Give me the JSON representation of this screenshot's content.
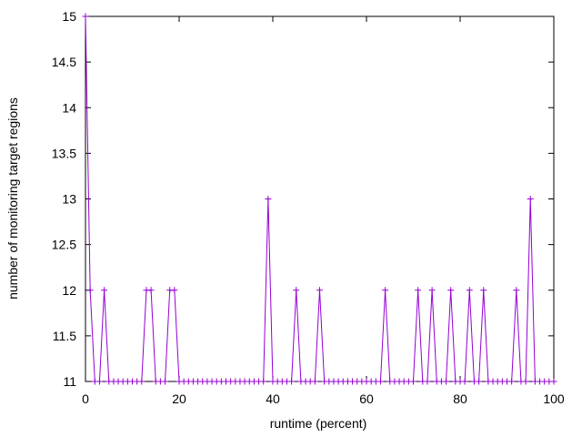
{
  "chart_data": {
    "type": "line",
    "title": "",
    "xlabel": "runtime (percent)",
    "ylabel": "number of monitoring target regions",
    "xlim": [
      0,
      100
    ],
    "ylim": [
      11,
      15
    ],
    "xticks": [
      "0",
      "20",
      "40",
      "60",
      "80",
      "100"
    ],
    "yticks": [
      "11",
      "11.5",
      "12",
      "12.5",
      "13",
      "13.5",
      "14",
      "14.5",
      "15"
    ],
    "grid": false,
    "legend": "none",
    "colors": {
      "series": "#9400d3",
      "axis": "#000000"
    },
    "series": [
      {
        "marker": "plus",
        "x": [
          0,
          1,
          2,
          3,
          4,
          5,
          6,
          7,
          8,
          9,
          10,
          11,
          12,
          13,
          14,
          15,
          16,
          17,
          18,
          19,
          20,
          21,
          22,
          23,
          24,
          25,
          26,
          27,
          28,
          29,
          30,
          31,
          32,
          33,
          34,
          35,
          36,
          37,
          38,
          39,
          40,
          41,
          42,
          43,
          44,
          45,
          46,
          47,
          48,
          49,
          50,
          51,
          52,
          53,
          54,
          55,
          56,
          57,
          58,
          59,
          60,
          61,
          62,
          63,
          64,
          65,
          66,
          67,
          68,
          69,
          70,
          71,
          72,
          73,
          74,
          75,
          76,
          77,
          78,
          79,
          80,
          81,
          82,
          83,
          84,
          85,
          86,
          87,
          88,
          89,
          90,
          91,
          92,
          93,
          94,
          95,
          96,
          97,
          98,
          99,
          100
        ],
        "y": [
          15,
          12,
          11,
          11,
          12,
          11,
          11,
          11,
          11,
          11,
          11,
          11,
          11,
          12,
          12,
          11,
          11,
          11,
          12,
          12,
          11,
          11,
          11,
          11,
          11,
          11,
          11,
          11,
          11,
          11,
          11,
          11,
          11,
          11,
          11,
          11,
          11,
          11,
          11,
          13,
          11,
          11,
          11,
          11,
          11,
          12,
          11,
          11,
          11,
          11,
          12,
          11,
          11,
          11,
          11,
          11,
          11,
          11,
          11,
          11,
          11,
          11,
          11,
          11,
          12,
          11,
          11,
          11,
          11,
          11,
          11,
          12,
          11,
          11,
          12,
          11,
          11,
          11,
          12,
          11,
          11,
          11,
          12,
          11,
          11,
          12,
          11,
          11,
          11,
          11,
          11,
          11,
          12,
          11,
          11,
          13,
          11,
          11,
          11,
          11,
          11
        ]
      }
    ]
  }
}
